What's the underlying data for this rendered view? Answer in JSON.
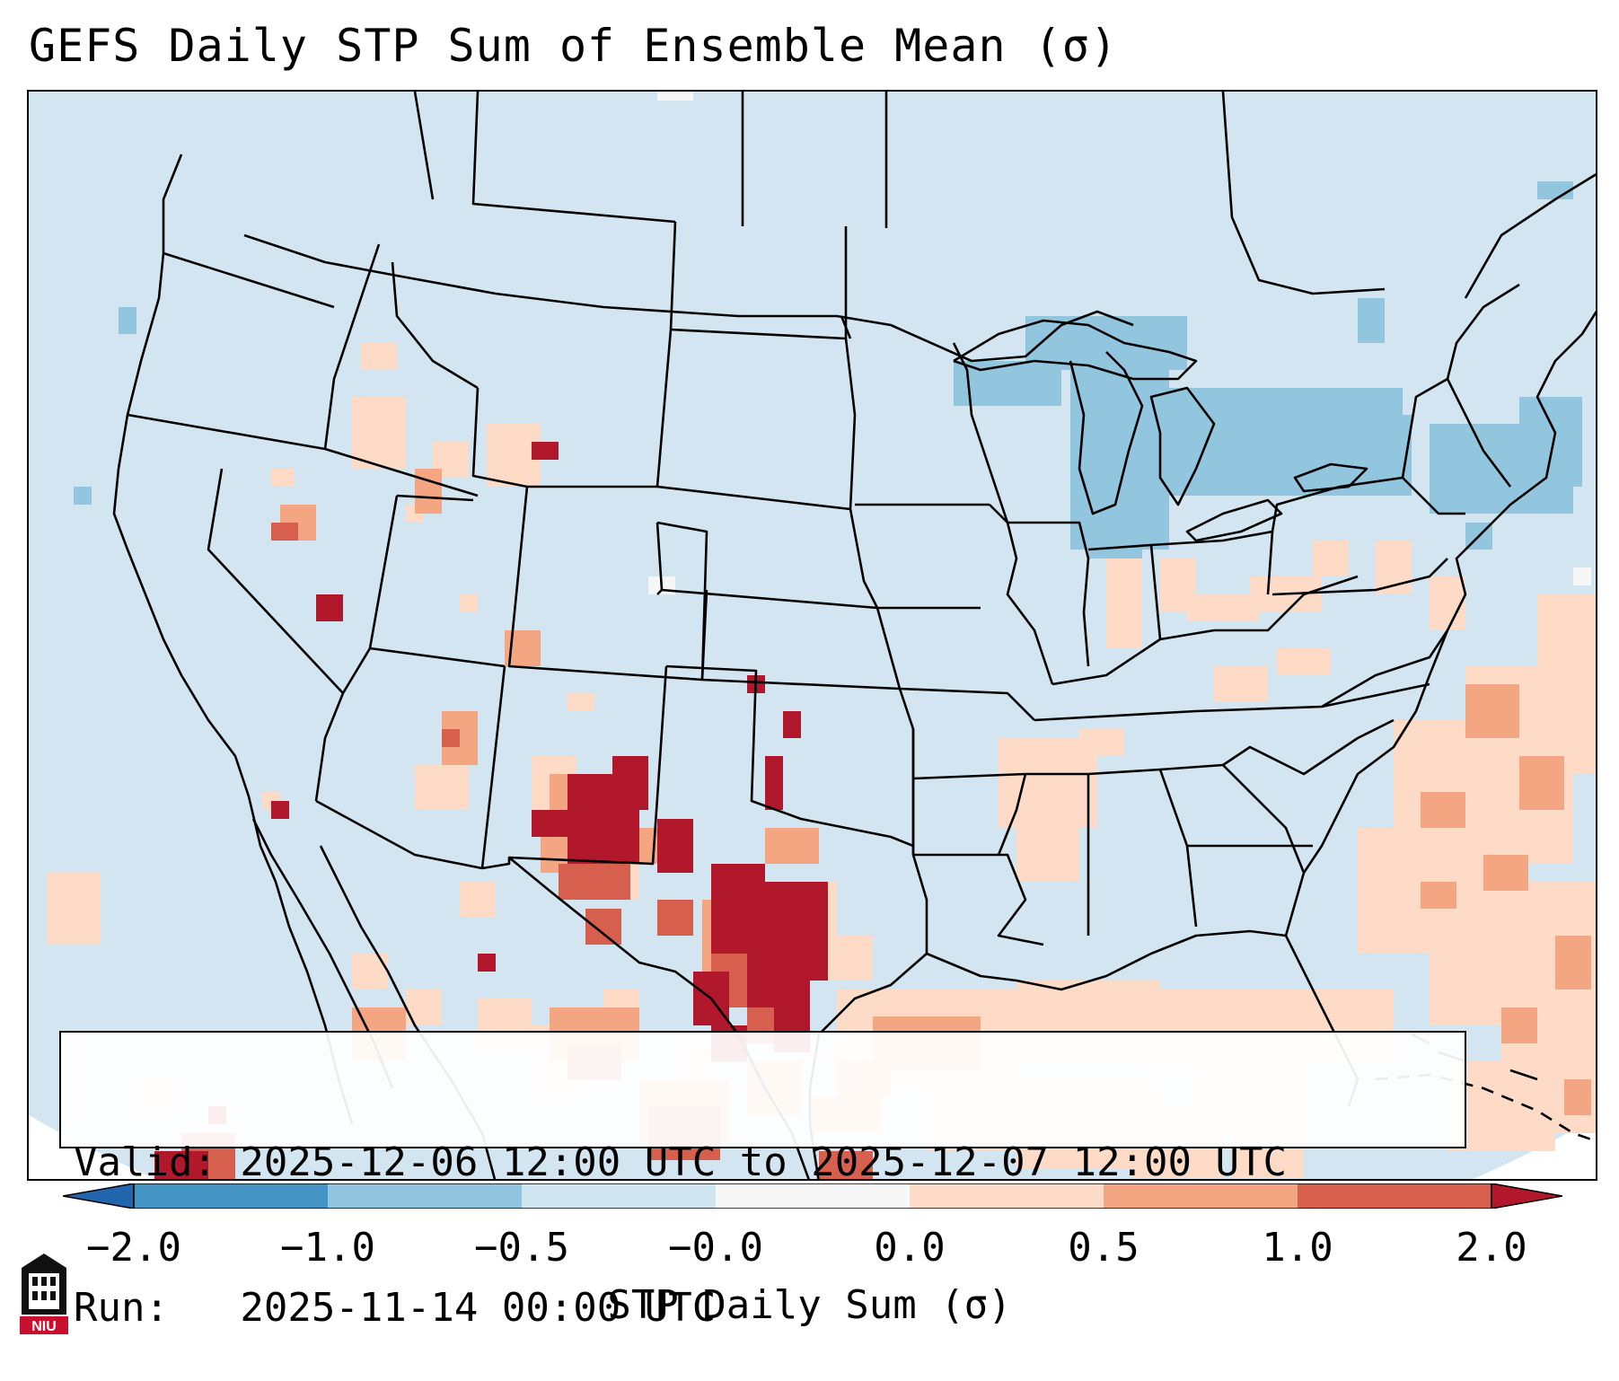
{
  "title": "GEFS Daily STP Sum of Ensemble Mean (σ)",
  "info": {
    "valid_line": "Valid: 2025-12-06 12:00 UTC to 2025-12-07 12:00 UTC",
    "run_line": "Run:   2025-11-14 00:00 UTC"
  },
  "colorbar": {
    "label": "STP Daily Sum (σ)",
    "tick_labels": [
      "−2.0",
      "−1.0",
      "−0.5",
      "−0.0",
      "0.0",
      "0.5",
      "1.0",
      "2.0"
    ],
    "bins": [
      {
        "range": "< -2.0",
        "color": "#2166ac"
      },
      {
        "range": "-2.0 to -1.0",
        "color": "#4393c3"
      },
      {
        "range": "-1.0 to -0.5",
        "color": "#92c5de"
      },
      {
        "range": "-0.5 to -0.0",
        "color": "#d1e5f0"
      },
      {
        "range": "-0.0 to 0.0",
        "color": "#f7f7f7"
      },
      {
        "range": "0.0 to 0.5",
        "color": "#fddbc7"
      },
      {
        "range": "0.5 to 1.0",
        "color": "#f4a582"
      },
      {
        "range": "1.0 to 2.0",
        "color": "#d6604d"
      },
      {
        "range": "> 2.0",
        "color": "#b2182b"
      }
    ]
  },
  "logo": {
    "text": "NIU",
    "icon": "university-building-icon"
  },
  "map_features": {
    "anomalies": [
      {
        "region": "Southern Plains / Texas",
        "sigma_class": "> 2.0"
      },
      {
        "region": "Eastern New Mexico",
        "sigma_class": "> 2.0"
      },
      {
        "region": "Gulf of Mexico coast",
        "sigma_class": "0.0 to 1.0"
      },
      {
        "region": "Western Atlantic",
        "sigma_class": "0.0 to 1.0"
      },
      {
        "region": "Great Lakes / Northeast",
        "sigma_class": "-1.0 to -0.5"
      }
    ]
  }
}
